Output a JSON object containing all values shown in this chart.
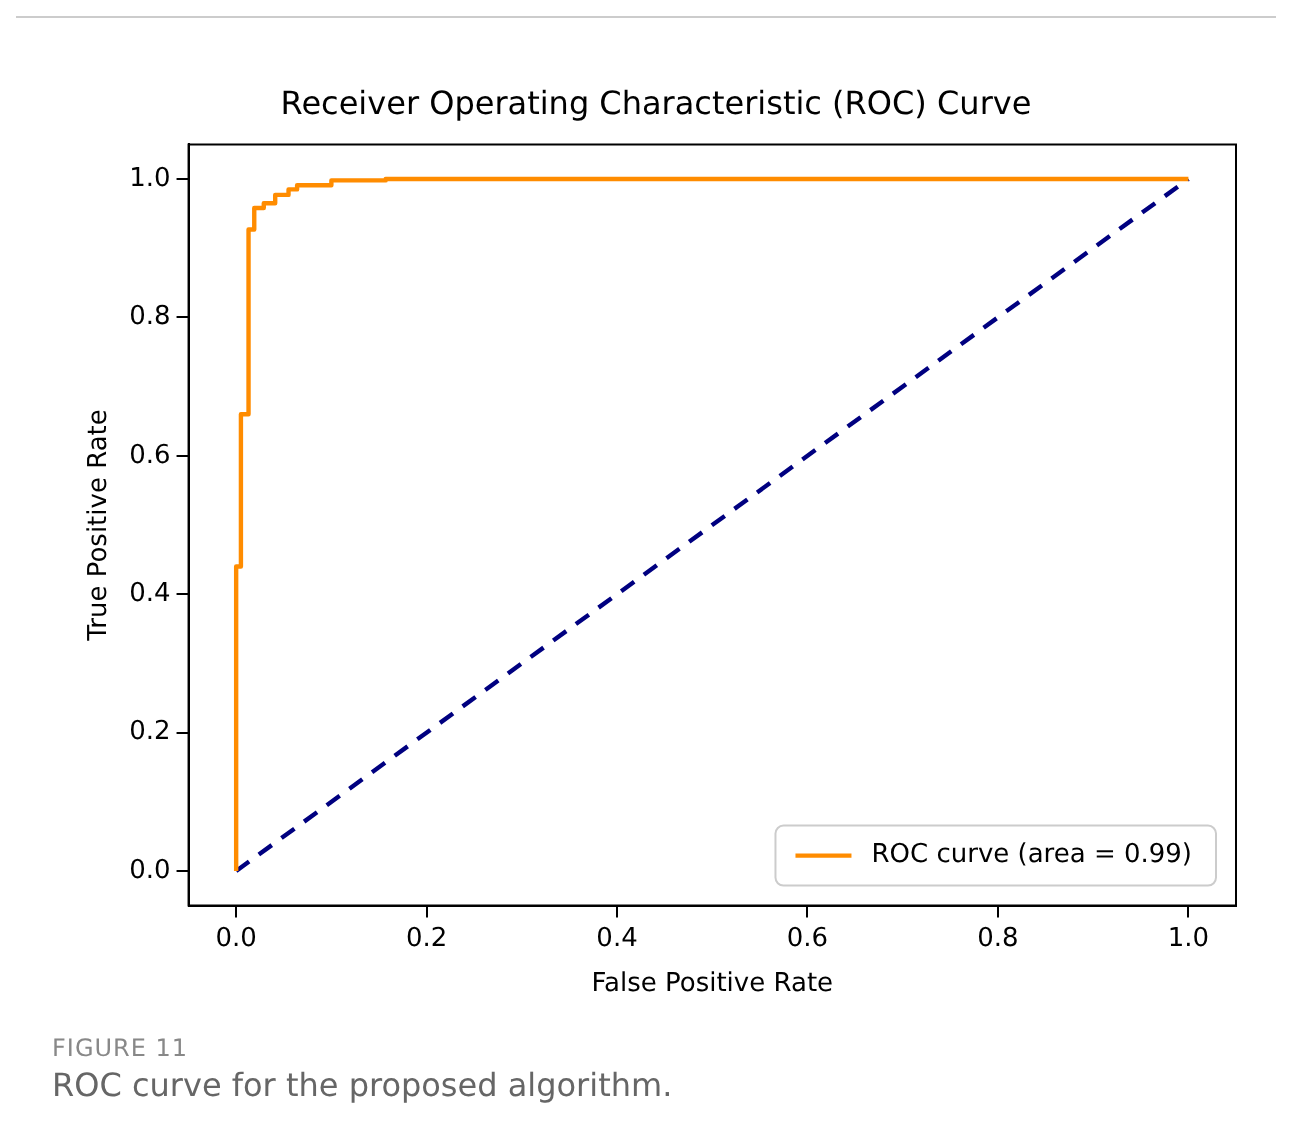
{
  "chart_data": {
    "type": "line",
    "title": "Receiver Operating Characteristic (ROC) Curve",
    "xlabel": "False Positive Rate",
    "ylabel": "True Positive Rate",
    "series": [
      {
        "name": "ROC curve (area = 0.99)",
        "color": "#ff8c00",
        "line_style": "solid",
        "x": [
          0,
          0,
          0.005,
          0.005,
          0.013,
          0.013,
          0.019,
          0.019,
          0.029,
          0.029,
          0.041,
          0.041,
          0.055,
          0.055,
          0.064,
          0.064,
          0.1,
          0.1,
          0.157,
          0.157,
          1
        ],
        "values": [
          0,
          0.44,
          0.44,
          0.66,
          0.66,
          0.927,
          0.927,
          0.958,
          0.958,
          0.965,
          0.965,
          0.977,
          0.977,
          0.985,
          0.985,
          0.991,
          0.991,
          0.998,
          0.998,
          1,
          1
        ]
      },
      {
        "color": "#000080",
        "line_style": "dashed",
        "x": [
          0,
          1
        ],
        "values": [
          0,
          1
        ]
      }
    ],
    "xlim": [
      -0.05,
      1.05
    ],
    "ylim": [
      -0.05,
      1.05
    ],
    "xticks": [
      {
        "value": 0,
        "label": "0.0"
      },
      0.2,
      0.4,
      0.6,
      0.8,
      {
        "value": 1,
        "label": "1.0"
      }
    ],
    "yticks": [
      {
        "value": 0,
        "label": "0.0"
      },
      0.2,
      0.4,
      0.6,
      0.8,
      {
        "value": 1,
        "label": "1.0"
      }
    ],
    "grid": false,
    "legend": "bottom right",
    "marker": "none",
    "annotations": [
      "FIGURE 11",
      "ROC curve for the proposed algorithm."
    ]
  }
}
